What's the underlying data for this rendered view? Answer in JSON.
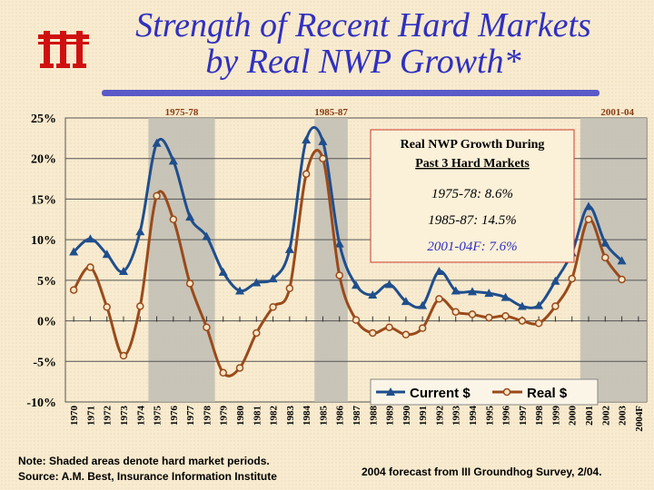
{
  "title_line1": "Strength of Recent Hard Markets",
  "title_line2": "by Real NWP Growth*",
  "logo_name": "iii-logo-icon",
  "footnote_line1": "Note: Shaded areas denote hard market periods.",
  "footnote_line2": "Source:  A.M. Best, Insurance Information Institute",
  "forecast_note": "2004 forecast from III Groundhog Survey, 2/04.",
  "colors": {
    "title": "#3030c0",
    "logo": "#d01010",
    "current": "#1f4e8c",
    "real": "#9a4a1a",
    "shade": "#c0bdb4",
    "rule": "#5a5ac8",
    "annotation_box": "#cc3b2e",
    "forecast_text": "#3030c0"
  },
  "chart_data": {
    "type": "line",
    "title": "",
    "xlabel": "",
    "ylabel": "",
    "ylim": [
      -10,
      25
    ],
    "y_ticks": [
      -10,
      -5,
      0,
      5,
      10,
      15,
      20,
      25
    ],
    "y_tick_labels": [
      "-10%",
      "-5%",
      "0%",
      "5%",
      "10%",
      "15%",
      "20%",
      "25%"
    ],
    "grid": true,
    "categories": [
      "1970",
      "1971",
      "1972",
      "1973",
      "1974",
      "1975",
      "1976",
      "1977",
      "1978",
      "1979",
      "1980",
      "1981",
      "1982",
      "1983",
      "1984",
      "1985",
      "1986",
      "1987",
      "1988",
      "1989",
      "1990",
      "1991",
      "1992",
      "1993",
      "1994",
      "1995",
      "1996",
      "1997",
      "1998",
      "1999",
      "2000",
      "2001",
      "2002",
      "2003",
      "2004F"
    ],
    "series": [
      {
        "name": "Current $",
        "marker": "triangle",
        "values": [
          8.5,
          10.1,
          8.2,
          6.1,
          11.0,
          21.9,
          19.7,
          12.8,
          10.4,
          6.0,
          3.7,
          4.7,
          5.2,
          8.8,
          22.3,
          22.1,
          9.5,
          4.4,
          3.2,
          4.5,
          2.4,
          1.9,
          6.1,
          3.7,
          3.6,
          3.4,
          2.9,
          1.8,
          1.9,
          4.9,
          8.4,
          14.1,
          9.6,
          7.4,
          null
        ]
      },
      {
        "name": "Real $",
        "marker": "circle",
        "values": [
          3.8,
          6.6,
          1.7,
          -4.3,
          1.8,
          15.4,
          12.5,
          4.6,
          -0.8,
          -6.4,
          -5.8,
          -1.5,
          1.7,
          4.0,
          18.1,
          20.0,
          5.6,
          0.1,
          -1.5,
          -0.8,
          -1.7,
          -0.9,
          2.7,
          1.1,
          0.8,
          0.4,
          0.6,
          0.0,
          -0.3,
          1.8,
          5.2,
          12.5,
          7.8,
          5.1,
          null
        ]
      }
    ],
    "shaded_periods": [
      {
        "label": "1975-78",
        "from": "1975",
        "to": "1978"
      },
      {
        "label": "1985-87",
        "from": "1985",
        "to": "1986"
      },
      {
        "label": "2001-04",
        "from": "2001",
        "to": "2004F"
      }
    ],
    "annotation": {
      "heading_line1": "Real NWP Growth During",
      "heading_line2": "Past 3 Hard Markets",
      "lines": [
        "1975-78: 8.6%",
        "1985-87: 14.5%",
        "2001-04F: 7.6%"
      ]
    },
    "legend": {
      "position": "bottom-right",
      "entries": [
        "Current $",
        "Real $"
      ]
    }
  }
}
